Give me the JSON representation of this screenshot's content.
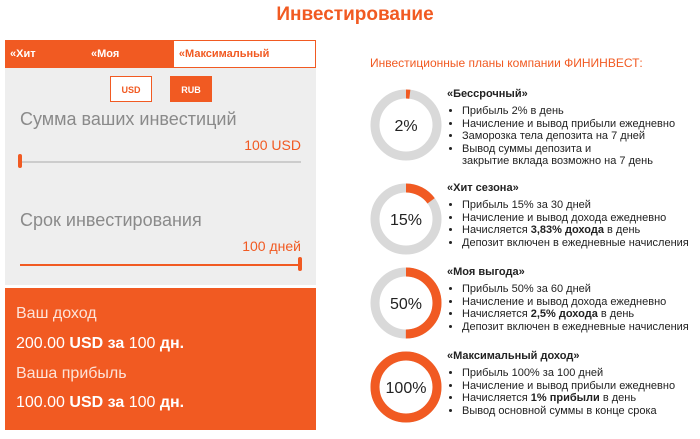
{
  "header": {
    "title": "Инвестирование"
  },
  "calculator": {
    "tabs": [
      "«Хит сезона»",
      "«Моя выгода»",
      "«Максимальный доход»"
    ],
    "active_tab": 2,
    "currencies": [
      "USD",
      "RUB"
    ],
    "active_currency": 1,
    "amount": {
      "label": "Сумма ваших инвестиций",
      "value_label": "100 USD"
    },
    "term": {
      "label": "Срок инвестирования",
      "value_label": "100 дней"
    },
    "result": {
      "income_label": "Ваш доход",
      "income": [
        "200.00",
        " USD за ",
        "100",
        " дн."
      ],
      "profit_label": "Ваша прибыль",
      "profit": [
        "100.00",
        " USD за ",
        "100",
        " дн."
      ]
    }
  },
  "plans": {
    "heading": "Инвестиционные планы компании ФИНИНВЕСТ:",
    "items": [
      {
        "title": "«Бессрочный»",
        "percent": 2,
        "percent_label": "2%",
        "bullets": [
          [
            "Прибыль 2% в день"
          ],
          [
            "Начисление и вывод прибыли ежедневно"
          ],
          [
            "Заморозка тела депозита на 7 дней"
          ],
          [
            "Вывод суммы депозита и\nзакрытие вклада возможно на 7 день"
          ]
        ]
      },
      {
        "title": "«Хит сезона»",
        "percent": 15,
        "percent_label": "15%",
        "bullets": [
          [
            "Прибыль 15% за 30 дней"
          ],
          [
            "Начисление и вывод дохода ежедневно"
          ],
          [
            "Начисляется ",
            "3,83% дохода",
            " в день"
          ],
          [
            "Депозит включен в ежедневные начисления"
          ]
        ]
      },
      {
        "title": "«Моя выгода»",
        "percent": 50,
        "percent_label": "50%",
        "bullets": [
          [
            "Прибыль 50% за 60 дней"
          ],
          [
            "Начисление и вывод дохода ежедневно"
          ],
          [
            "Начисляется ",
            "2,5% дохода",
            " в день"
          ],
          [
            "Депозит включен в ежедневные начисления"
          ]
        ]
      },
      {
        "title": "«Максимальный доход»",
        "percent": 100,
        "percent_label": "100%",
        "bullets": [
          [
            "Прибыль 100% за 100 дней"
          ],
          [
            "Начисление и вывод прибыли ежедневно"
          ],
          [
            "Начисляется ",
            "1% прибыли",
            " в день"
          ],
          [
            "Вывод основной суммы в конце срока"
          ]
        ]
      }
    ]
  }
}
